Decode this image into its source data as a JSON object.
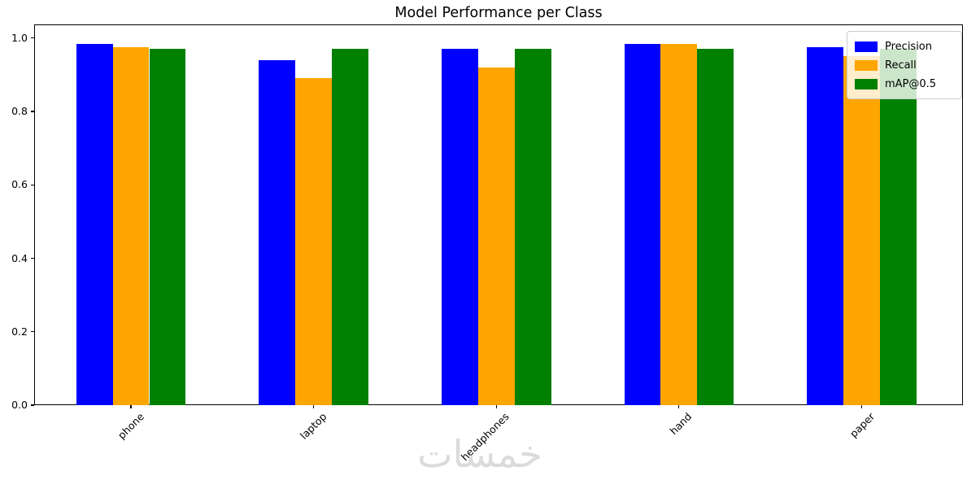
{
  "watermark": "خمسات",
  "colors": {
    "precision": "#0000ff",
    "recall": "#ffa500",
    "map": "#008000",
    "watermark": "#d9dcd9",
    "legend_border": "#cccccc",
    "axis": "#000000"
  },
  "chart_data": {
    "type": "bar",
    "title": "Model Performance per Class",
    "categories": [
      "phone",
      "laptop",
      "headphones",
      "hand",
      "paper"
    ],
    "series": [
      {
        "name": "Precision",
        "color": "#0000ff",
        "values": [
          0.985,
          0.94,
          0.97,
          0.985,
          0.975
        ]
      },
      {
        "name": "Recall",
        "color": "#ffa500",
        "values": [
          0.975,
          0.89,
          0.92,
          0.985,
          0.95
        ]
      },
      {
        "name": "mAP@0.5",
        "color": "#008000",
        "values": [
          0.97,
          0.97,
          0.97,
          0.97,
          0.97
        ]
      }
    ],
    "bar_width": 0.2,
    "xlim": [
      -0.53,
      4.55
    ],
    "ylim": [
      0,
      1.037
    ],
    "ytick_values": [
      0.0,
      0.2,
      0.4,
      0.6,
      0.8,
      1.0
    ],
    "yticks": [
      "0.0",
      "0.2",
      "0.4",
      "0.6",
      "0.8",
      "1.0"
    ],
    "xtick_rotation": 45,
    "grid": false,
    "legend": {
      "position": "upper right",
      "entries": [
        "Precision",
        "Recall",
        "mAP@0.5"
      ]
    }
  }
}
